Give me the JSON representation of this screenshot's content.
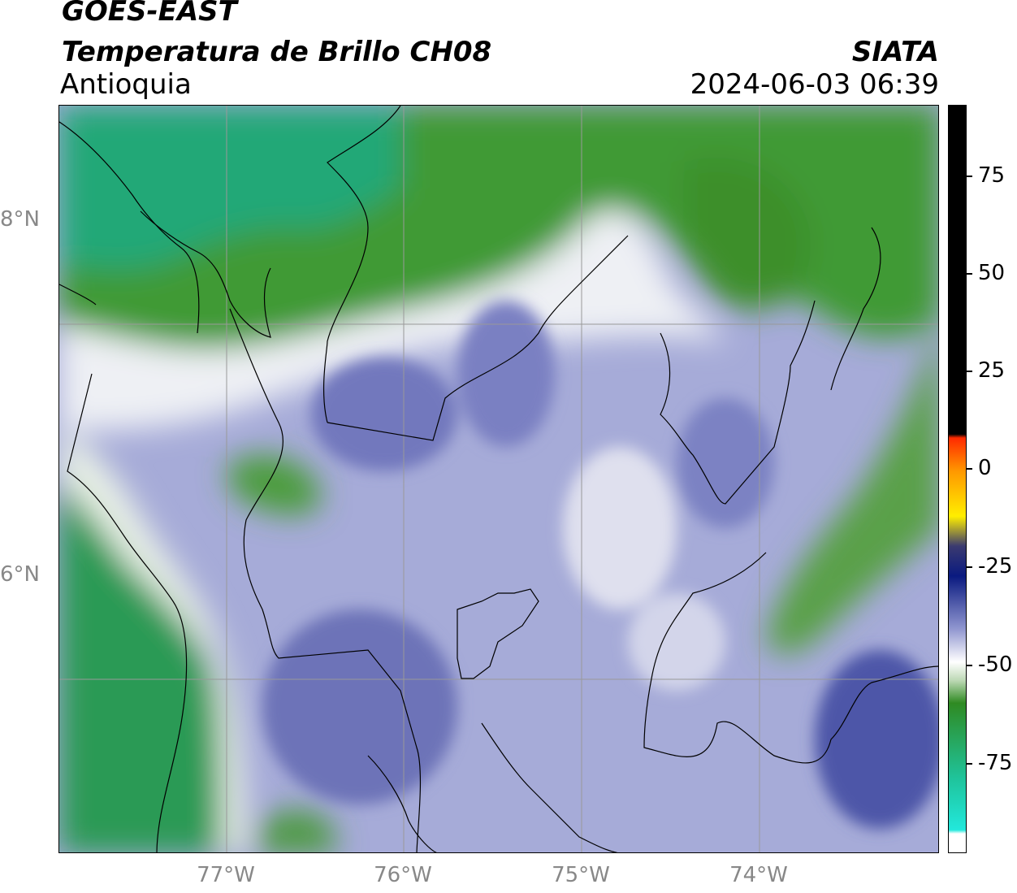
{
  "header": {
    "title": "GOES-EAST",
    "subtitle": "Temperatura de Brillo CH08",
    "region": "Antioquia",
    "organization": "SIATA",
    "timestamp": "2024-06-03 06:39"
  },
  "map": {
    "latitude_labels": [
      "8°N",
      "6°N"
    ],
    "longitude_labels": [
      "77°W",
      "76°W",
      "75°W",
      "74°W"
    ],
    "gridlines": true
  },
  "colorbar": {
    "tick_labels": [
      "75",
      "50",
      "25",
      "0",
      "-25",
      "-50",
      "-75"
    ],
    "range": [
      -95,
      90
    ],
    "colors": {
      "black": "#000000",
      "red": "#ff2a00",
      "orange": "#ff9900",
      "yellow": "#ffee00",
      "dark_blue": "#0a1a80",
      "lavender": "#8f95cf",
      "white": "#ffffff",
      "green": "#2f8a22",
      "teal": "#1fc39a",
      "cyan": "#22e8dc"
    }
  }
}
